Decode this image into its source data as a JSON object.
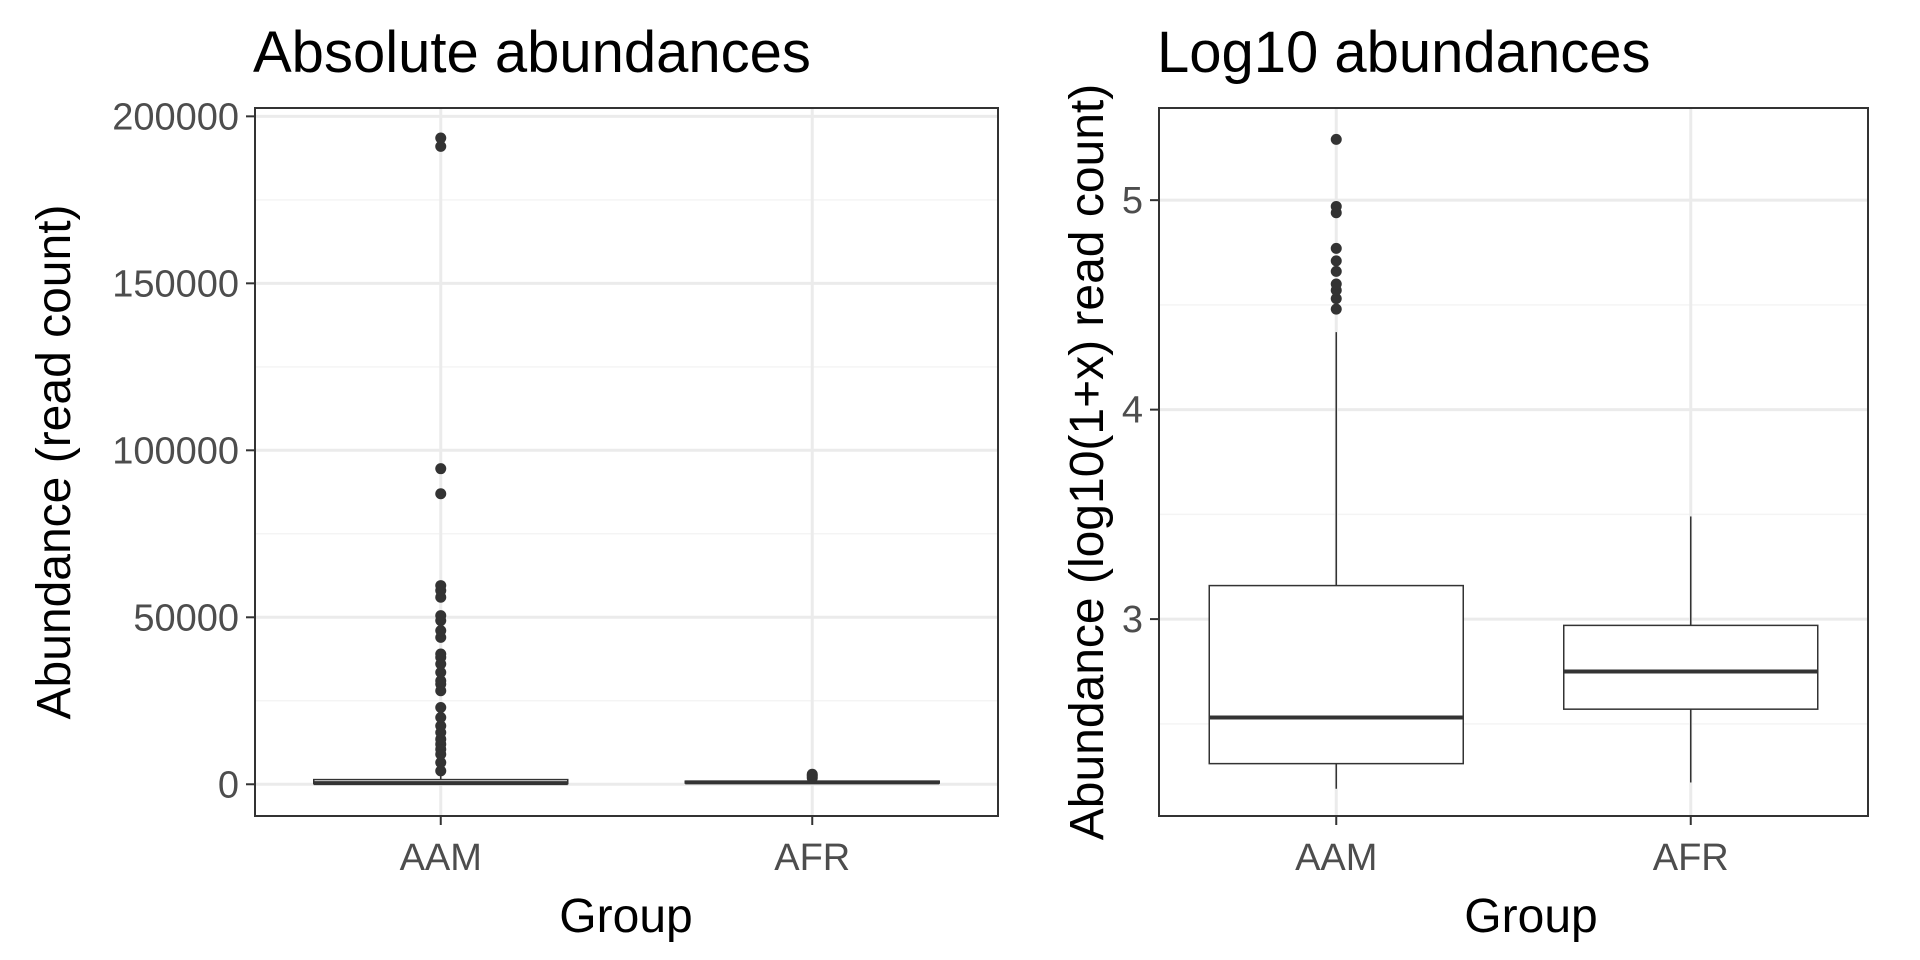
{
  "colors": {
    "background": "#ffffff",
    "panel_border": "#333333",
    "grid_major": "#ebebeb",
    "grid_minor": "#f4f4f4",
    "box_line": "#333333",
    "outlier": "#333333",
    "tick_text": "#4d4d4d",
    "title_text": "#000000"
  },
  "chart_data": [
    {
      "type": "box",
      "title": "Absolute abundances",
      "xlabel": "Group",
      "ylabel": "Abundance (read count)",
      "categories": [
        "AAM",
        "AFR"
      ],
      "ylim": [
        -9500,
        202500
      ],
      "y_ticks": [
        0,
        50000,
        100000,
        150000,
        200000
      ],
      "y_tick_labels": [
        "0",
        "50000",
        "100000",
        "150000",
        "200000"
      ],
      "y_minor_ticks": [
        25000,
        75000,
        125000,
        175000
      ],
      "grid": true,
      "boxes": [
        {
          "group": "AAM",
          "whisker_low": 150,
          "q1": 200,
          "median": 340,
          "q3": 1400,
          "whisker_high": 3500,
          "outliers": [
            4000,
            6500,
            9000,
            10500,
            12000,
            13500,
            15500,
            17500,
            20000,
            23000,
            28000,
            30000,
            31000,
            33500,
            36000,
            38000,
            39000,
            44000,
            46000,
            49000,
            50500,
            56000,
            58000,
            59500,
            87000,
            94500,
            191000,
            193500
          ]
        },
        {
          "group": "AFR",
          "whisker_low": 160,
          "q1": 370,
          "median": 570,
          "q3": 920,
          "whisker_high": 1400,
          "outliers": [
            1900,
            2500,
            3000
          ]
        }
      ]
    },
    {
      "type": "box",
      "title": "Log10 abundances",
      "xlabel": "Group",
      "ylabel": "Abundance (log10(1+x) read count)",
      "categories": [
        "AAM",
        "AFR"
      ],
      "ylim": [
        2.06,
        5.44
      ],
      "y_ticks": [
        3,
        4,
        5
      ],
      "y_tick_labels": [
        "3",
        "4",
        "5"
      ],
      "y_minor_ticks": [
        2.5,
        3.5,
        4.5
      ],
      "grid": true,
      "boxes": [
        {
          "group": "AAM",
          "whisker_low": 2.19,
          "q1": 2.31,
          "median": 2.53,
          "q3": 3.16,
          "whisker_high": 4.37,
          "outliers": [
            4.48,
            4.53,
            4.57,
            4.6,
            4.66,
            4.71,
            4.77,
            4.94,
            4.97,
            5.29
          ]
        },
        {
          "group": "AFR",
          "whisker_low": 2.22,
          "q1": 2.57,
          "median": 2.75,
          "q3": 2.97,
          "whisker_high": 3.49,
          "outliers": []
        }
      ]
    }
  ]
}
